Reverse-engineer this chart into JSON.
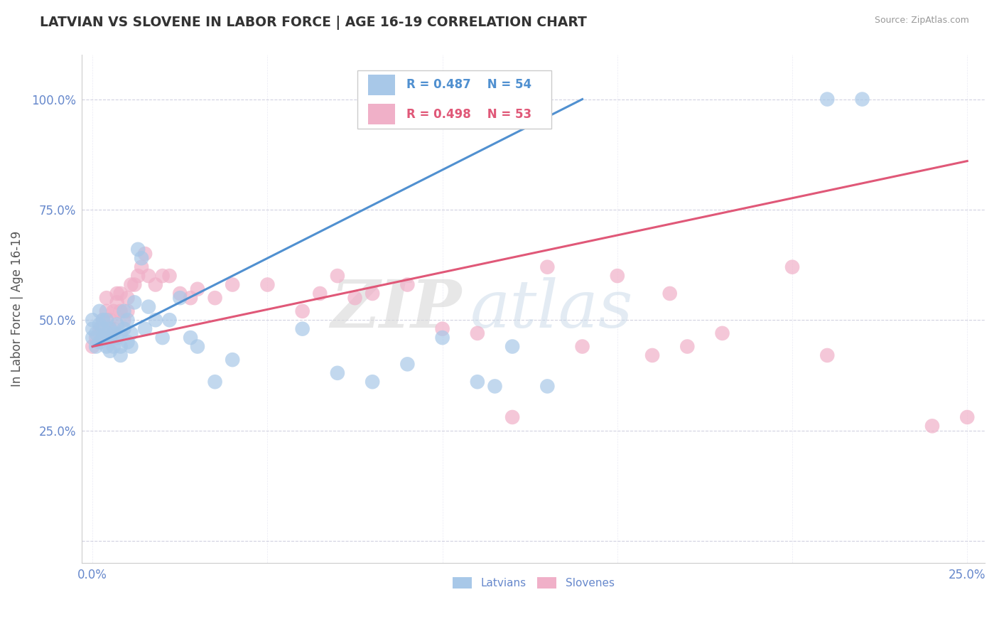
{
  "title": "LATVIAN VS SLOVENE IN LABOR FORCE | AGE 16-19 CORRELATION CHART",
  "source": "Source: ZipAtlas.com",
  "ylabel": "In Labor Force | Age 16-19",
  "xlim": [
    -0.003,
    0.255
  ],
  "ylim": [
    -0.05,
    1.1
  ],
  "x_ticks": [
    0.0,
    0.05,
    0.1,
    0.15,
    0.2,
    0.25
  ],
  "x_tick_labels": [
    "0.0%",
    "",
    "",
    "",
    "",
    "25.0%"
  ],
  "y_ticks": [
    0.0,
    0.25,
    0.5,
    0.75,
    1.0
  ],
  "y_tick_labels": [
    "",
    "25.0%",
    "50.0%",
    "75.0%",
    "100.0%"
  ],
  "latvian_color": "#a8c8e8",
  "slovene_color": "#f0b0c8",
  "latvian_line_color": "#5090d0",
  "slovene_line_color": "#e05878",
  "watermark_zip": "ZIP",
  "watermark_atlas": "atlas",
  "legend_R_latvian": "R = 0.487",
  "legend_N_latvian": "N = 54",
  "legend_R_slovene": "R = 0.498",
  "legend_N_slovene": "N = 53",
  "latvian_x": [
    0.0,
    0.0,
    0.0,
    0.001,
    0.001,
    0.002,
    0.002,
    0.002,
    0.003,
    0.003,
    0.003,
    0.004,
    0.004,
    0.004,
    0.005,
    0.005,
    0.005,
    0.006,
    0.006,
    0.007,
    0.007,
    0.008,
    0.008,
    0.008,
    0.009,
    0.009,
    0.01,
    0.01,
    0.011,
    0.011,
    0.012,
    0.013,
    0.014,
    0.015,
    0.016,
    0.018,
    0.02,
    0.022,
    0.025,
    0.028,
    0.03,
    0.035,
    0.04,
    0.06,
    0.07,
    0.08,
    0.09,
    0.1,
    0.11,
    0.115,
    0.12,
    0.13,
    0.21,
    0.22
  ],
  "latvian_y": [
    0.5,
    0.48,
    0.46,
    0.47,
    0.44,
    0.49,
    0.52,
    0.45,
    0.46,
    0.48,
    0.5,
    0.44,
    0.47,
    0.5,
    0.46,
    0.48,
    0.43,
    0.44,
    0.47,
    0.46,
    0.49,
    0.47,
    0.44,
    0.42,
    0.48,
    0.52,
    0.45,
    0.5,
    0.47,
    0.44,
    0.54,
    0.66,
    0.64,
    0.48,
    0.53,
    0.5,
    0.46,
    0.5,
    0.55,
    0.46,
    0.44,
    0.36,
    0.41,
    0.48,
    0.38,
    0.36,
    0.4,
    0.46,
    0.36,
    0.35,
    0.44,
    0.35,
    1.0,
    1.0
  ],
  "slovene_x": [
    0.0,
    0.001,
    0.002,
    0.003,
    0.003,
    0.004,
    0.004,
    0.005,
    0.005,
    0.006,
    0.006,
    0.007,
    0.007,
    0.008,
    0.008,
    0.009,
    0.01,
    0.01,
    0.011,
    0.012,
    0.013,
    0.014,
    0.015,
    0.016,
    0.018,
    0.02,
    0.022,
    0.025,
    0.028,
    0.03,
    0.035,
    0.04,
    0.05,
    0.06,
    0.065,
    0.07,
    0.075,
    0.08,
    0.09,
    0.1,
    0.11,
    0.12,
    0.13,
    0.14,
    0.15,
    0.16,
    0.165,
    0.17,
    0.18,
    0.2,
    0.21,
    0.24,
    0.25
  ],
  "slovene_y": [
    0.44,
    0.46,
    0.48,
    0.5,
    0.46,
    0.52,
    0.55,
    0.5,
    0.48,
    0.52,
    0.48,
    0.54,
    0.56,
    0.52,
    0.56,
    0.5,
    0.52,
    0.55,
    0.58,
    0.58,
    0.6,
    0.62,
    0.65,
    0.6,
    0.58,
    0.6,
    0.6,
    0.56,
    0.55,
    0.57,
    0.55,
    0.58,
    0.58,
    0.52,
    0.56,
    0.6,
    0.55,
    0.56,
    0.58,
    0.48,
    0.47,
    0.28,
    0.62,
    0.44,
    0.6,
    0.42,
    0.56,
    0.44,
    0.47,
    0.62,
    0.42,
    0.26,
    0.28
  ],
  "lv_line_x0": 0.0,
  "lv_line_y0": 0.44,
  "lv_line_x1": 0.14,
  "lv_line_y1": 1.0,
  "sl_line_x0": 0.0,
  "sl_line_y0": 0.44,
  "sl_line_x1": 0.25,
  "sl_line_y1": 0.86
}
